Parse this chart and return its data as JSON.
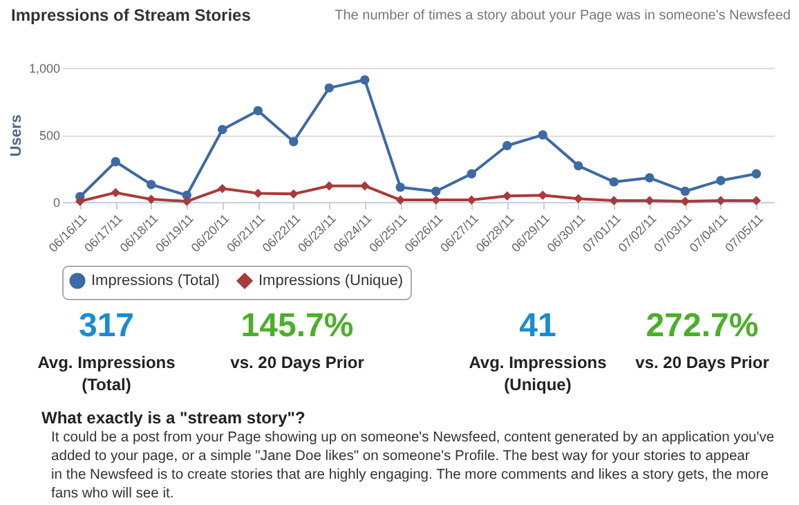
{
  "chart_data": {
    "type": "line",
    "title": "Impressions of Stream Stories",
    "subtitle": "The number of times a story about your Page was in someone's Newsfeed",
    "ylabel": "Users",
    "categories": [
      "06/16/11",
      "06/17/11",
      "06/18/11",
      "06/19/11",
      "06/20/11",
      "06/21/11",
      "06/22/11",
      "06/23/11",
      "06/24/11",
      "06/25/11",
      "06/26/11",
      "06/27/11",
      "06/28/11",
      "06/29/11",
      "06/30/11",
      "07/01/11",
      "07/02/11",
      "07/03/11",
      "07/04/11",
      "07/05/11"
    ],
    "series": [
      {
        "name": "Impressions (Total)",
        "color": "#3d6aa3",
        "marker": "circle",
        "values": [
          40,
          300,
          130,
          50,
          540,
          680,
          450,
          850,
          910,
          110,
          80,
          210,
          420,
          500,
          270,
          150,
          180,
          80,
          160,
          210
        ]
      },
      {
        "name": "Impressions (Unique)",
        "color": "#aa3a3a",
        "marker": "diamond",
        "values": [
          5,
          70,
          20,
          5,
          100,
          65,
          60,
          120,
          120,
          15,
          15,
          15,
          45,
          50,
          25,
          10,
          10,
          5,
          10,
          10
        ]
      }
    ],
    "ylim": [
      0,
      1000
    ],
    "yticks": [
      0,
      500,
      {
        "value": 1000,
        "label": "1,000"
      }
    ],
    "grid": "y",
    "legend": "bottom",
    "line_style": "solid",
    "annotations": [
      "317",
      "Avg. Impressions",
      "(Total)",
      "145.7%",
      "vs. 20 Days Prior",
      "41",
      "Avg. Impressions",
      "(Unique)",
      "272.7%",
      "vs. 20 Days Prior",
      "What exactly is a \"stream story\"?",
      "It could be a post from your Page showing up on someone's Newsfeed, content generated by an application you've",
      "added to your page, or a simple \"Jane Doe likes\" on someone's Profile. The best way for your stories to appear",
      "in the Newsfeed is to create stories that are highly engaging. The more comments and likes a story gets, the more",
      "fans who will see it."
    ]
  }
}
